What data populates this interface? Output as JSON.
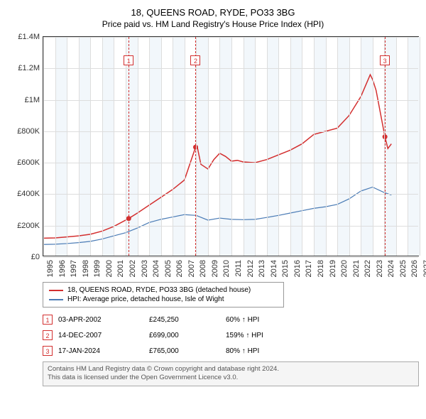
{
  "title": "18, QUEENS ROAD, RYDE, PO33 3BG",
  "subtitle": "Price paid vs. HM Land Registry's House Price Index (HPI)",
  "chart": {
    "type": "line",
    "background_color": "#ffffff",
    "grid_color": "#dddddd",
    "band_colors": [
      "#f2f7fb",
      "#ffffff"
    ],
    "text_color": "#333333",
    "title_fontsize": 13,
    "label_fontsize": 11,
    "x_years": [
      1995,
      1996,
      1997,
      1998,
      1999,
      2000,
      2001,
      2002,
      2003,
      2004,
      2005,
      2006,
      2007,
      2008,
      2009,
      2010,
      2011,
      2012,
      2013,
      2014,
      2015,
      2016,
      2017,
      2018,
      2019,
      2020,
      2021,
      2022,
      2023,
      2024,
      2025,
      2026,
      2027
    ],
    "xlim": [
      1995,
      2027
    ],
    "ylim": [
      0,
      1400000
    ],
    "yticks": [
      0,
      200000,
      400000,
      600000,
      800000,
      1000000,
      1200000,
      1400000
    ],
    "ytick_labels": [
      "£0",
      "£200K",
      "£400K",
      "£600K",
      "£800K",
      "£1M",
      "£1.2M",
      "£1.4M"
    ],
    "series": [
      {
        "name": "18, QUEENS ROAD, RYDE, PO33 3BG (detached house)",
        "color": "#d32f2f",
        "line_width": 1.5,
        "points": [
          [
            1995,
            120000
          ],
          [
            1996,
            122000
          ],
          [
            1997,
            128000
          ],
          [
            1998,
            135000
          ],
          [
            1999,
            145000
          ],
          [
            2000,
            165000
          ],
          [
            2001,
            195000
          ],
          [
            2002.26,
            245250
          ],
          [
            2003,
            280000
          ],
          [
            2004,
            330000
          ],
          [
            2005,
            380000
          ],
          [
            2006,
            430000
          ],
          [
            2007,
            490000
          ],
          [
            2007.95,
            699000
          ],
          [
            2008.1,
            698000
          ],
          [
            2008.4,
            590000
          ],
          [
            2009,
            560000
          ],
          [
            2009.5,
            620000
          ],
          [
            2010,
            660000
          ],
          [
            2010.5,
            640000
          ],
          [
            2011,
            610000
          ],
          [
            2011.5,
            615000
          ],
          [
            2012,
            605000
          ],
          [
            2013,
            600000
          ],
          [
            2014,
            620000
          ],
          [
            2015,
            650000
          ],
          [
            2016,
            680000
          ],
          [
            2017,
            720000
          ],
          [
            2018,
            780000
          ],
          [
            2019,
            800000
          ],
          [
            2020,
            820000
          ],
          [
            2021,
            900000
          ],
          [
            2022,
            1020000
          ],
          [
            2022.8,
            1160000
          ],
          [
            2023,
            1130000
          ],
          [
            2023.3,
            1060000
          ],
          [
            2024.05,
            765000
          ],
          [
            2024.3,
            690000
          ],
          [
            2024.6,
            720000
          ]
        ],
        "sale_markers": [
          {
            "x": 2002.26,
            "y": 245250
          },
          {
            "x": 2007.95,
            "y": 699000
          },
          {
            "x": 2024.05,
            "y": 765000
          }
        ]
      },
      {
        "name": "HPI: Average price, detached house, Isle of Wight",
        "color": "#4a7bb5",
        "line_width": 1.2,
        "points": [
          [
            1995,
            80000
          ],
          [
            1996,
            82000
          ],
          [
            1997,
            86000
          ],
          [
            1998,
            92000
          ],
          [
            1999,
            100000
          ],
          [
            2000,
            115000
          ],
          [
            2001,
            135000
          ],
          [
            2002,
            155000
          ],
          [
            2003,
            185000
          ],
          [
            2004,
            220000
          ],
          [
            2005,
            240000
          ],
          [
            2006,
            255000
          ],
          [
            2007,
            270000
          ],
          [
            2008,
            265000
          ],
          [
            2009,
            235000
          ],
          [
            2010,
            248000
          ],
          [
            2011,
            240000
          ],
          [
            2012,
            238000
          ],
          [
            2013,
            240000
          ],
          [
            2014,
            252000
          ],
          [
            2015,
            265000
          ],
          [
            2016,
            280000
          ],
          [
            2017,
            295000
          ],
          [
            2018,
            310000
          ],
          [
            2019,
            320000
          ],
          [
            2020,
            335000
          ],
          [
            2021,
            370000
          ],
          [
            2022,
            420000
          ],
          [
            2023,
            445000
          ],
          [
            2024,
            410000
          ],
          [
            2024.6,
            395000
          ]
        ]
      }
    ],
    "event_lines": [
      {
        "x": 2002.26,
        "label": "1",
        "label_y_offset": 26
      },
      {
        "x": 2007.95,
        "label": "2",
        "label_y_offset": 26
      },
      {
        "x": 2024.05,
        "label": "3",
        "label_y_offset": 26
      }
    ]
  },
  "legend": {
    "items": [
      {
        "color": "#d32f2f",
        "label": "18, QUEENS ROAD, RYDE, PO33 3BG (detached house)"
      },
      {
        "color": "#4a7bb5",
        "label": "HPI: Average price, detached house, Isle of Wight"
      }
    ]
  },
  "transactions": [
    {
      "num": "1",
      "date": "03-APR-2002",
      "price": "£245,250",
      "delta": "60% ↑ HPI"
    },
    {
      "num": "2",
      "date": "14-DEC-2007",
      "price": "£699,000",
      "delta": "159% ↑ HPI"
    },
    {
      "num": "3",
      "date": "17-JAN-2024",
      "price": "£765,000",
      "delta": "80% ↑ HPI"
    }
  ],
  "footer": {
    "line1": "Contains HM Land Registry data © Crown copyright and database right 2024.",
    "line2": "This data is licensed under the Open Government Licence v3.0."
  }
}
